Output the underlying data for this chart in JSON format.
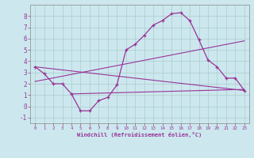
{
  "xlabel": "Windchill (Refroidissement éolien,°C)",
  "background_color": "#cce8ee",
  "grid_color": "#aacccc",
  "line_color": "#993399",
  "xlim": [
    -0.5,
    23.5
  ],
  "ylim": [
    -1.5,
    9.0
  ],
  "xticks": [
    0,
    1,
    2,
    3,
    4,
    5,
    6,
    7,
    8,
    9,
    10,
    11,
    12,
    13,
    14,
    15,
    16,
    17,
    18,
    19,
    20,
    21,
    22,
    23
  ],
  "yticks": [
    -1,
    0,
    1,
    2,
    3,
    4,
    5,
    6,
    7,
    8
  ],
  "curve_x": [
    0,
    1,
    2,
    3,
    4,
    5,
    6,
    7,
    8,
    9,
    10,
    11,
    12,
    13,
    14,
    15,
    16,
    17,
    18,
    19,
    20,
    21,
    22,
    23
  ],
  "curve_y": [
    3.5,
    2.9,
    2.0,
    2.0,
    1.1,
    -0.4,
    -0.4,
    0.5,
    0.8,
    1.9,
    5.0,
    5.5,
    6.3,
    7.2,
    7.6,
    8.2,
    8.3,
    7.6,
    5.9,
    4.1,
    3.5,
    2.5,
    2.5,
    1.4
  ],
  "trend1_x": [
    0,
    23
  ],
  "trend1_y": [
    3.5,
    1.4
  ],
  "trend2_x": [
    0,
    23
  ],
  "trend2_y": [
    2.2,
    5.8
  ],
  "trend3_x": [
    4,
    23
  ],
  "trend3_y": [
    1.1,
    1.5
  ]
}
